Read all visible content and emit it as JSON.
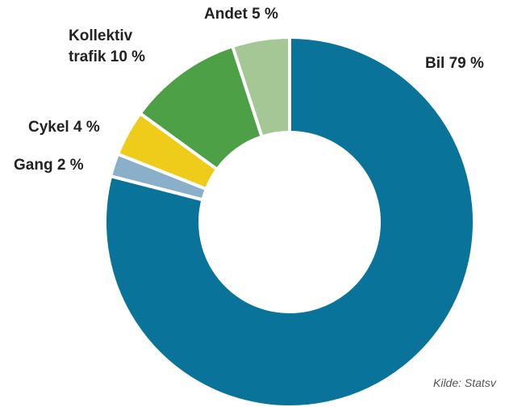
{
  "chart_data": {
    "type": "donut",
    "categories": [
      "Bil",
      "Gang",
      "Cykel",
      "Kollektiv trafik",
      "Andet"
    ],
    "values": [
      79,
      2,
      4,
      10,
      5
    ],
    "value_labels": [
      "79 %",
      "2 %",
      "4 %",
      "10 %",
      "5 %"
    ],
    "colors": [
      "#0a7399",
      "#8aafc8",
      "#f0cc1a",
      "#4ea046",
      "#a5c795"
    ],
    "source": "Kilde: Statsv"
  }
}
